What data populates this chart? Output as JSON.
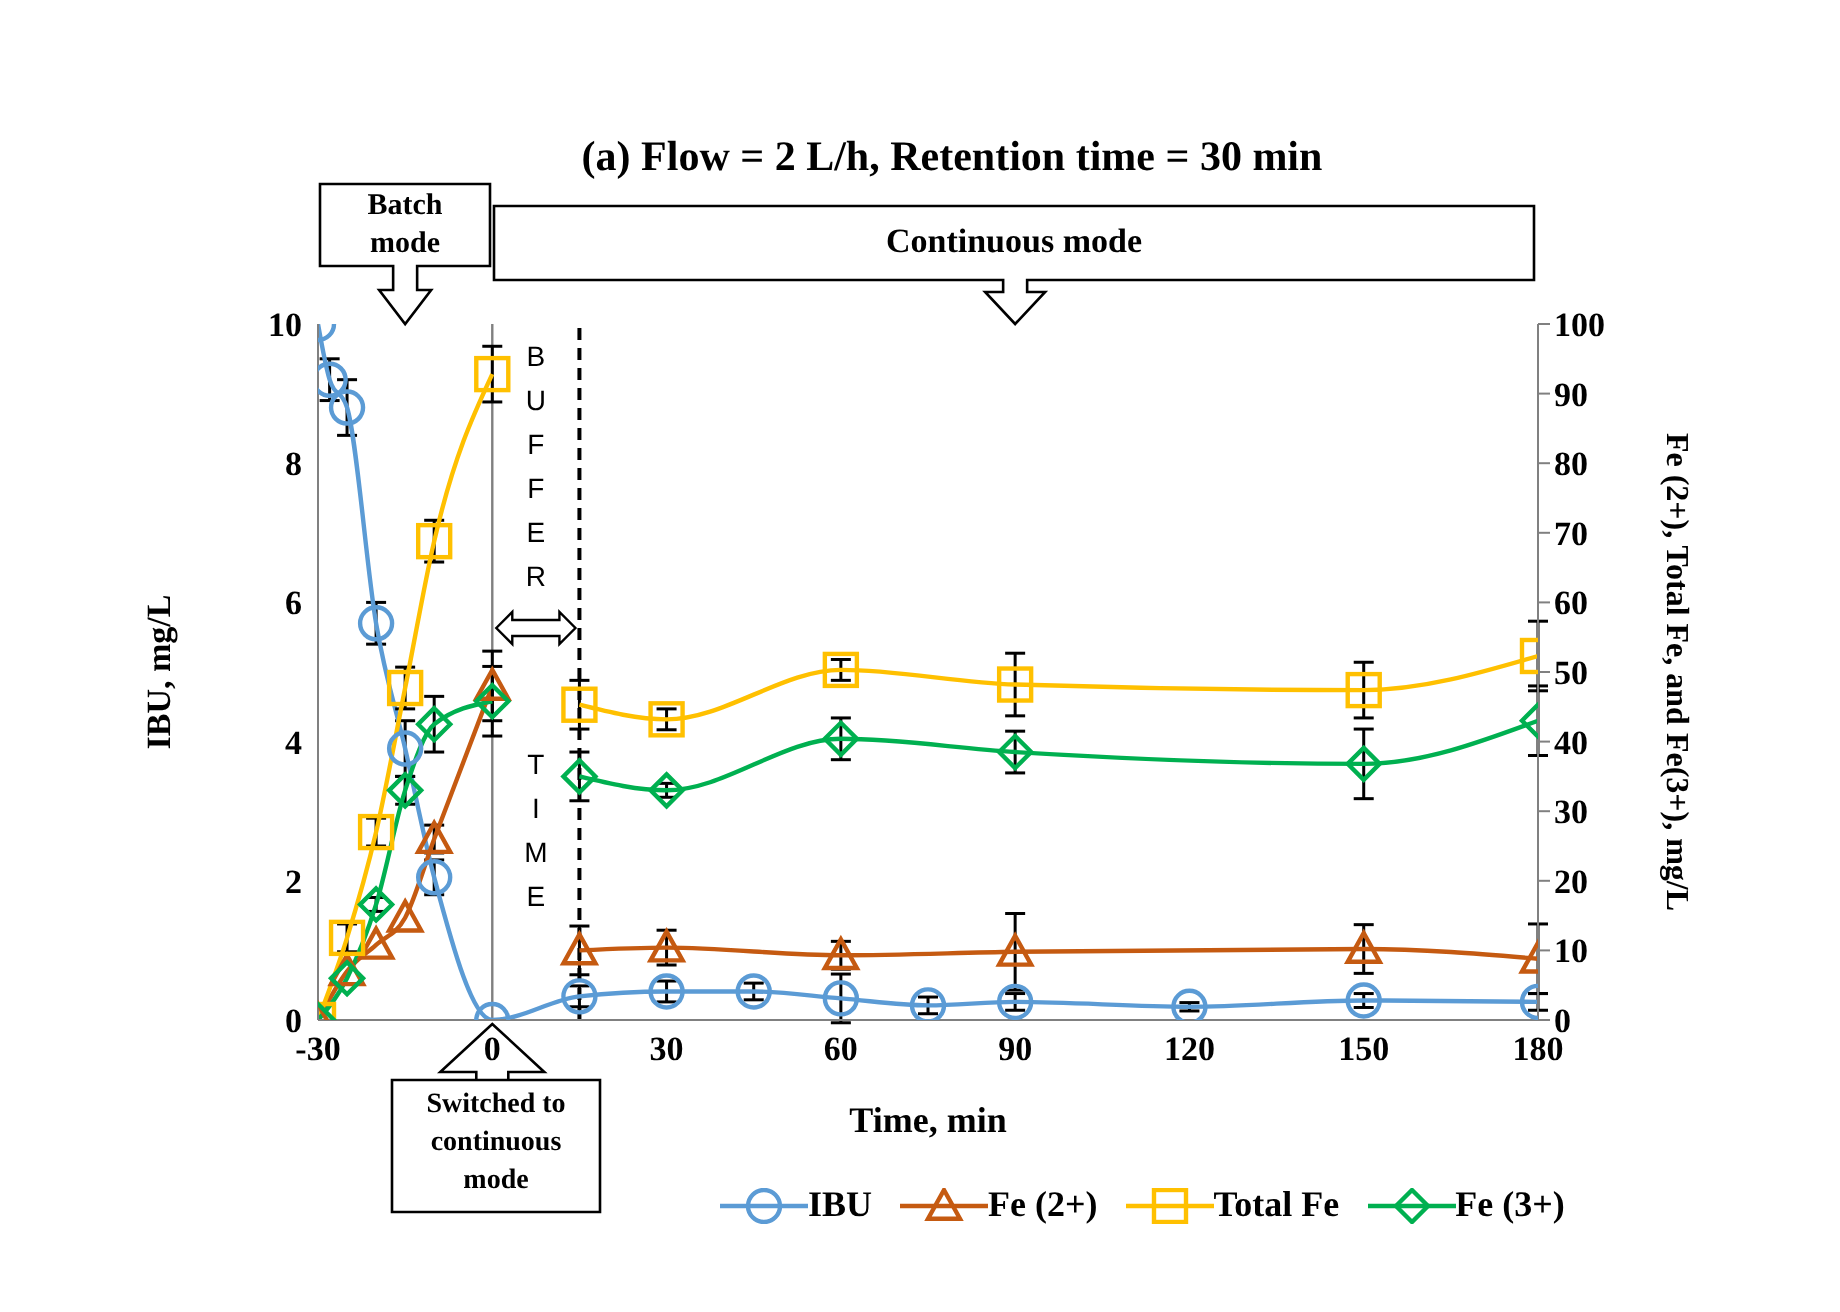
{
  "chart_data": {
    "type": "line",
    "title": "(a) Flow = 2 L/h, Retention time = 30 min",
    "xlabel": "Time, min",
    "ylabel": "IBU, mg/L",
    "y2label": "Fe (2+), Total Fe, and Fe(3+), mg/L",
    "xlim": [
      -30,
      180
    ],
    "xticks": [
      -30,
      0,
      30,
      60,
      90,
      120,
      150,
      180
    ],
    "ylim": [
      0,
      10
    ],
    "yticks": [
      0,
      2,
      4,
      6,
      8,
      10
    ],
    "y2lim": [
      0,
      100
    ],
    "y2ticks": [
      0,
      10,
      20,
      30,
      40,
      50,
      60,
      70,
      80,
      90,
      100
    ],
    "series": [
      {
        "name": "IBU",
        "color": "#5b9bd5",
        "marker": "circle",
        "axis": "y",
        "x": [
          -30,
          -28,
          -25,
          -20,
          -15,
          -10,
          0,
          15,
          30,
          45,
          60,
          75,
          90,
          120,
          150,
          180
        ],
        "values": [
          10,
          9.2,
          8.8,
          5.7,
          3.9,
          2.05,
          0,
          0.34,
          0.41,
          0.41,
          0.31,
          0.21,
          0.26,
          0.19,
          0.28,
          0.26
        ],
        "errors": [
          null,
          0.3,
          0.4,
          0.3,
          0.4,
          0.25,
          null,
          0.15,
          0.15,
          0.12,
          0.35,
          0.12,
          0.12,
          0.06,
          0.1,
          0.12
        ]
      },
      {
        "name": "Fe (2+)",
        "color": "#c55a11",
        "marker": "triangle",
        "axis": "y2",
        "x": [
          -30,
          -25,
          -20,
          -15,
          -10,
          0
        ],
        "values": [
          0,
          7,
          10.8,
          14.7,
          26,
          48
        ],
        "errors": [
          null,
          null,
          null,
          null,
          2,
          5
        ]
      },
      {
        "color": "#c55a11",
        "marker": "triangle",
        "axis": "y2",
        "x": [
          15,
          30,
          60,
          90,
          150,
          180
        ],
        "values": [
          10,
          10.4,
          9.3,
          9.8,
          10.2,
          8.8
        ],
        "errors": [
          3.5,
          2.5,
          2,
          5.5,
          3.5,
          5
        ]
      },
      {
        "name": "Total Fe",
        "color": "#ffc000",
        "marker": "square",
        "axis": "y2",
        "x": [
          -30,
          -25,
          -20,
          -15,
          -10,
          0
        ],
        "values": [
          0,
          11.8,
          27,
          47.7,
          68.8,
          92.8
        ],
        "errors": [
          null,
          2,
          2,
          3,
          3,
          4
        ]
      },
      {
        "color": "#ffc000",
        "marker": "square",
        "axis": "y2",
        "x": [
          15,
          30,
          60,
          90,
          150,
          180
        ],
        "values": [
          45.3,
          43.2,
          50.3,
          48.2,
          47.4,
          52.3
        ],
        "errors": [
          3.5,
          1.5,
          1.5,
          4.5,
          4,
          5
        ]
      },
      {
        "name": "Fe (3+)",
        "color": "#00b050",
        "marker": "diamond",
        "axis": "y2",
        "x": [
          -30,
          -25,
          -20,
          -15,
          -10,
          0
        ],
        "values": [
          0,
          6,
          16.6,
          33,
          42.5,
          45.8
        ],
        "errors": [
          null,
          null,
          1,
          2,
          4,
          5
        ]
      },
      {
        "color": "#00b050",
        "marker": "diamond",
        "axis": "y2",
        "x": [
          15,
          30,
          60,
          90,
          150,
          180
        ],
        "values": [
          35,
          33,
          40.4,
          38.5,
          36.8,
          43
        ],
        "errors": [
          3.5,
          1,
          3,
          3,
          5,
          5
        ]
      }
    ],
    "ref_lines": [
      {
        "axis": "x",
        "value": 0,
        "color": "#808080",
        "line_style": "solid"
      },
      {
        "axis": "x",
        "value": 15,
        "color": "#000000",
        "line_style": "dashed"
      }
    ],
    "annotations": [
      "Batch mode",
      "Continuous mode",
      "Switched to continuous mode",
      "BUFFER TIME"
    ],
    "legend": "bottom",
    "line_style": "solid"
  }
}
